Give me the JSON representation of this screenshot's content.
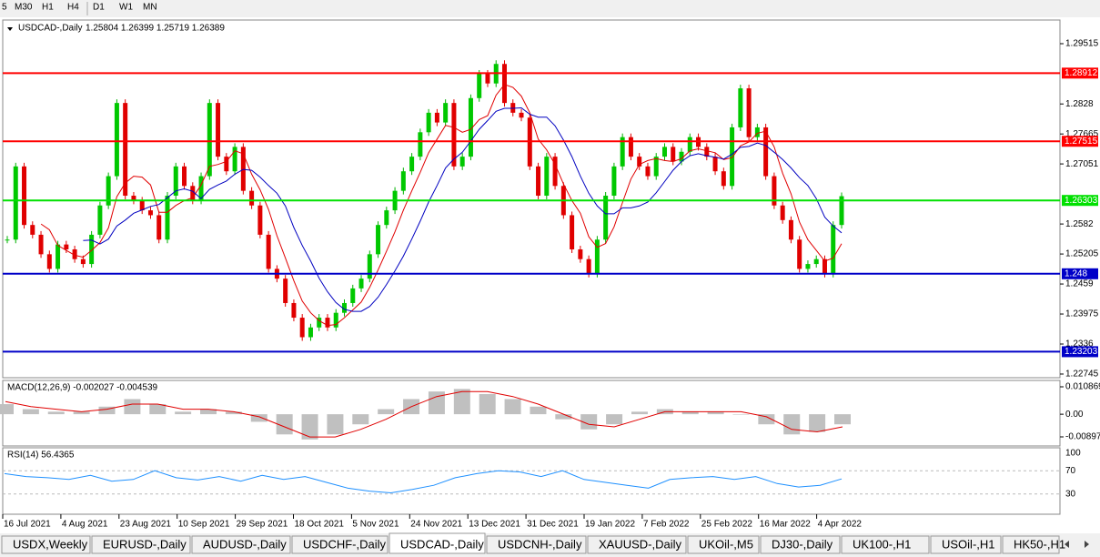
{
  "toolbar": {
    "timeframes": [
      "5",
      "M30",
      "H1",
      "H4",
      "D1",
      "W1",
      "MN"
    ]
  },
  "chart": {
    "header": "USDCAD-,Daily",
    "quote": "1.25804 1.26399 1.25719 1.26389",
    "ylim": [
      1.2267,
      1.3
    ],
    "yticks": [
      1.29515,
      1.2828,
      1.27665,
      1.27051,
      1.2582,
      1.25205,
      1.2459,
      1.23975,
      1.2336,
      1.22745
    ],
    "levels": [
      {
        "value": 1.28912,
        "color": "#ff0000"
      },
      {
        "value": 1.27515,
        "color": "#ff0000"
      },
      {
        "value": 1.26303,
        "color": "#00e000"
      },
      {
        "value": 1.248,
        "color": "#0000c8"
      },
      {
        "value": 1.23203,
        "color": "#0000c8"
      }
    ],
    "close": [
      1.255,
      1.27,
      1.258,
      1.256,
      1.252,
      1.249,
      1.254,
      1.253,
      1.251,
      1.25,
      1.256,
      1.262,
      1.268,
      1.283,
      1.264,
      1.263,
      1.261,
      1.26,
      1.255,
      1.264,
      1.27,
      1.266,
      1.263,
      1.268,
      1.283,
      1.272,
      1.269,
      1.274,
      1.265,
      1.262,
      1.256,
      1.249,
      1.247,
      1.242,
      1.239,
      1.235,
      1.237,
      1.239,
      1.237,
      1.24,
      1.242,
      1.245,
      1.247,
      1.252,
      1.258,
      1.261,
      1.265,
      1.269,
      1.272,
      1.277,
      1.281,
      1.279,
      1.283,
      1.27,
      1.272,
      1.284,
      1.289,
      1.287,
      1.291,
      1.283,
      1.281,
      1.28,
      1.27,
      1.264,
      1.272,
      1.266,
      1.26,
      1.253,
      1.251,
      1.248,
      1.255,
      1.264,
      1.27,
      1.276,
      1.272,
      1.27,
      1.268,
      1.272,
      1.274,
      1.271,
      1.273,
      1.276,
      1.274,
      1.272,
      1.269,
      1.266,
      1.278,
      1.286,
      1.276,
      1.278,
      1.268,
      1.262,
      1.259,
      1.255,
      1.249,
      1.25,
      1.251,
      1.248,
      1.258,
      1.2639
    ]
  },
  "macd": {
    "label": "MACD(12,26,9) -0.002027 -0.004539",
    "ylim": [
      -0.01258,
      0.01339
    ],
    "yticks": [
      0.010869,
      {
        "value": 0,
        "label": "0.00"
      },
      -0.008974
    ],
    "main": [
      0.004,
      0.002,
      0.001,
      0.001,
      0.003,
      0.006,
      0.004,
      0.001,
      0.002,
      0.001,
      -0.003,
      -0.008,
      -0.01,
      -0.008,
      -0.004,
      0.002,
      0.006,
      0.009,
      0.01,
      0.008,
      0.006,
      0.003,
      -0.002,
      -0.006,
      -0.004,
      0.001,
      0.002,
      0.001,
      0.001,
      0,
      -0.004,
      -0.008,
      -0.007,
      -0.004
    ],
    "signal": [
      0.005,
      0.003,
      0.002,
      0.001,
      0.002,
      0.004,
      0.004,
      0.002,
      0.002,
      0.001,
      -0.001,
      -0.005,
      -0.009,
      -0.009,
      -0.006,
      -0.002,
      0.003,
      0.007,
      0.009,
      0.009,
      0.007,
      0.004,
      0,
      -0.004,
      -0.005,
      -0.002,
      0.001,
      0.001,
      0.001,
      0.001,
      -0.001,
      -0.006,
      -0.007,
      -0.005
    ]
  },
  "rsi": {
    "label": "RSI(14) 56.4365",
    "ylim": [
      0,
      100
    ],
    "yticks": [
      100,
      70,
      30
    ],
    "values": [
      65,
      60,
      58,
      55,
      62,
      52,
      55,
      70,
      58,
      54,
      60,
      52,
      62,
      55,
      60,
      50,
      40,
      35,
      32,
      38,
      45,
      58,
      65,
      70,
      68,
      60,
      70,
      55,
      50,
      45,
      40,
      55,
      58,
      60,
      55,
      60,
      48,
      42,
      45,
      56
    ]
  },
  "dates": [
    "16 Jul 2021",
    "4 Aug 2021",
    "23 Aug 2021",
    "10 Sep 2021",
    "29 Sep 2021",
    "18 Oct 2021",
    "5 Nov 2021",
    "24 Nov 2021",
    "13 Dec 2021",
    "31 Dec 2021",
    "19 Jan 2022",
    "7 Feb 2022",
    "25 Feb 2022",
    "16 Mar 2022",
    "4 Apr 2022"
  ],
  "tabs": [
    "USDX,Weekly",
    "EURUSD-,Daily",
    "AUDUSD-,Daily",
    "USDCHF-,Daily",
    "USDCAD-,Daily",
    "USDCNH-,Daily",
    "XAUUSD-,Daily",
    "UKOil-,M5",
    "DJ30-,Daily",
    "UK100-,H1",
    "USOil-,H1",
    "HK50-,H1"
  ]
}
